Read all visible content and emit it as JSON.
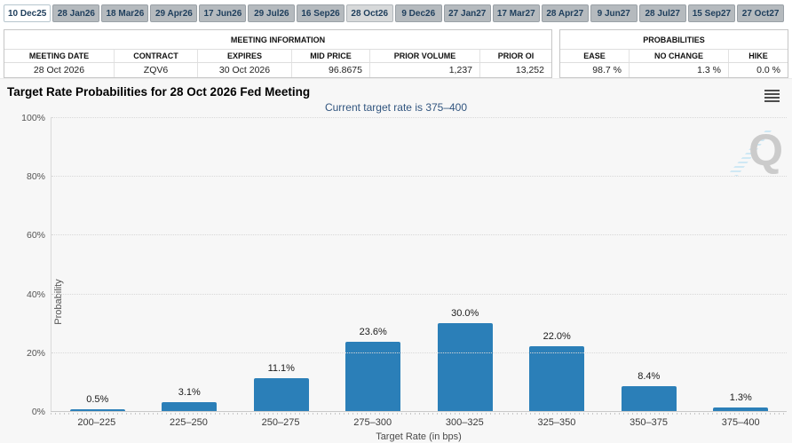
{
  "tabs": {
    "items": [
      {
        "label": "10 Dec25",
        "state": "first"
      },
      {
        "label": "28 Jan26",
        "state": "default"
      },
      {
        "label": "18 Mar26",
        "state": "default"
      },
      {
        "label": "29 Apr26",
        "state": "default"
      },
      {
        "label": "17 Jun26",
        "state": "default"
      },
      {
        "label": "29 Jul26",
        "state": "default"
      },
      {
        "label": "16 Sep26",
        "state": "default"
      },
      {
        "label": "28 Oct26",
        "state": "selected"
      },
      {
        "label": "9 Dec26",
        "state": "default"
      },
      {
        "label": "27 Jan27",
        "state": "default"
      },
      {
        "label": "17 Mar27",
        "state": "default"
      },
      {
        "label": "28 Apr27",
        "state": "default"
      },
      {
        "label": "9 Jun27",
        "state": "default"
      },
      {
        "label": "28 Jul27",
        "state": "default"
      },
      {
        "label": "15 Sep27",
        "state": "default"
      },
      {
        "label": "27 Oct27",
        "state": "default"
      }
    ]
  },
  "meeting_info": {
    "title": "MEETING INFORMATION",
    "columns": [
      "MEETING DATE",
      "CONTRACT",
      "EXPIRES",
      "MID PRICE",
      "PRIOR VOLUME",
      "PRIOR OI"
    ],
    "values": [
      "28 Oct 2026",
      "ZQV6",
      "30 Oct 2026",
      "96.8675",
      "1,237",
      "13,252"
    ],
    "value_align": [
      "center",
      "center",
      "center",
      "right",
      "right",
      "right"
    ]
  },
  "probabilities": {
    "title": "PROBABILITIES",
    "columns": [
      "EASE",
      "NO CHANGE",
      "HIKE"
    ],
    "values": [
      "98.7 %",
      "1.3 %",
      "0.0 %"
    ],
    "value_align": [
      "right",
      "right",
      "right"
    ]
  },
  "watermark_letter": "Q",
  "chart_data": {
    "type": "bar",
    "title": "Target Rate Probabilities for 28 Oct 2026 Fed Meeting",
    "subtitle": "Current target rate is 375–400",
    "categories": [
      "200–225",
      "225–250",
      "250–275",
      "275–300",
      "300–325",
      "325–350",
      "350–375",
      "375–400"
    ],
    "values": [
      0.5,
      3.1,
      11.1,
      23.6,
      30.0,
      22.0,
      8.4,
      1.3
    ],
    "bar_labels": [
      "0.5%",
      "3.1%",
      "11.1%",
      "23.6%",
      "30.0%",
      "22.0%",
      "8.4%",
      "1.3%"
    ],
    "xlabel": "Target Rate (in bps)",
    "ylabel": "Probability",
    "ylim": [
      0,
      100
    ],
    "ytick_labels": [
      "0%",
      "20%",
      "40%",
      "60%",
      "80%",
      "100%"
    ],
    "grid": "horizontal-dotted",
    "legend": "none",
    "bar_color": "#2b7fb8"
  }
}
